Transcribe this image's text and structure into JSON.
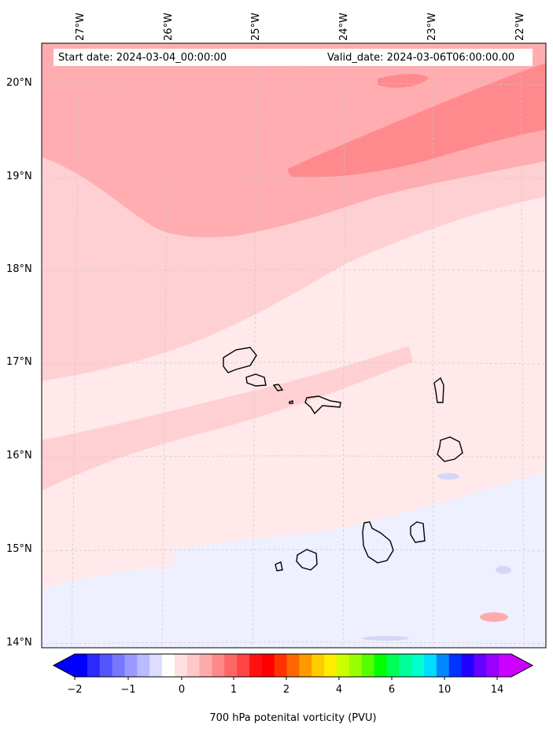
{
  "map": {
    "longitude_labels": [
      "27°W",
      "26°W",
      "25°W",
      "24°W",
      "23°W",
      "22°W"
    ],
    "latitude_labels": [
      "20°N",
      "19°N",
      "18°N",
      "17°N",
      "16°N",
      "15°N",
      "14°N"
    ],
    "start_date": "Start date: 2024-03-04_00:00:00",
    "valid_date": "Valid_date: 2024-03-06T06:00:00.00",
    "field": "700 hPa potential vorticity",
    "levels_colors": {
      "weak_negative": "#eeeeff",
      "light_negative": "#d5d5f5",
      "near_zero": "#ffe8e8",
      "low_positive": "#ffd0d0",
      "mid_positive": "#ffaaaa",
      "high_positive": "#ff8888"
    }
  },
  "colorbar": {
    "tick_labels": [
      "−2",
      "−1",
      "0",
      "1",
      "2",
      "4",
      "6",
      "10",
      "14"
    ],
    "label": "700 hPa potenital vorticity (PVU)",
    "colors": [
      "#0000ff",
      "#2a2aff",
      "#5555ff",
      "#7777ff",
      "#9999ff",
      "#bbbbff",
      "#ddddff",
      "#ffffff",
      "#ffe0e0",
      "#ffc8c8",
      "#ffaaaa",
      "#ff8888",
      "#ff6666",
      "#ff4444",
      "#ff1111",
      "#ff0000",
      "#ff3300",
      "#ff6600",
      "#ff9900",
      "#ffcc00",
      "#ffee00",
      "#ccff00",
      "#99ff00",
      "#55ff00",
      "#00ff00",
      "#00ff55",
      "#00ff99",
      "#00ffcc",
      "#00ddff",
      "#0088ff",
      "#0033ff",
      "#2200ff",
      "#6600ff",
      "#9900ff",
      "#cc00ff"
    ]
  }
}
